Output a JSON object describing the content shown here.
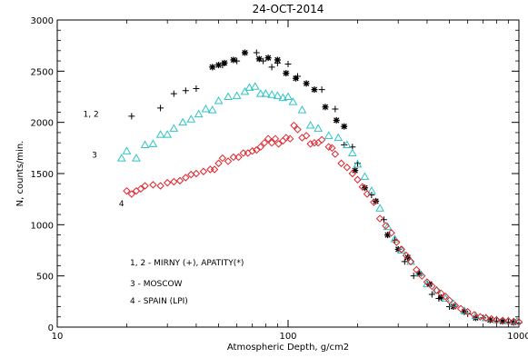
{
  "chart_data": {
    "type": "scatter",
    "title": "24-OCT-2014",
    "xlabel": "Atmospheric Depth, g/cm2",
    "ylabel": "N, counts/min.",
    "xscale": "log",
    "xlim": [
      10,
      1000
    ],
    "ylim": [
      0,
      3000
    ],
    "x_ticks": [
      10,
      100,
      1000
    ],
    "x_tick_labels": [
      "10",
      "100",
      "1000"
    ],
    "y_ticks": [
      0,
      500,
      1000,
      1500,
      2000,
      2500,
      3000
    ],
    "y_tick_labels": [
      "0",
      "500",
      "1000",
      "1500",
      "2000",
      "2500",
      "3000"
    ],
    "grid": false,
    "legend_position": "lower-left",
    "legend_entries": [
      "1, 2 - MIRNY (+), APATITY(*)",
      "3 - MOSCOW",
      "4 - SPAIN (LPI)"
    ],
    "curve_labels": [
      {
        "text": "1, 2",
        "x": 14,
        "y": 2080
      },
      {
        "text": "3",
        "x": 14.5,
        "y": 1680
      },
      {
        "text": "4",
        "x": 19,
        "y": 1205
      }
    ],
    "series": [
      {
        "name": "MIRNY (+)",
        "marker": "plus",
        "color": "#000000",
        "points": [
          [
            21,
            2060
          ],
          [
            28,
            2140
          ],
          [
            32,
            2280
          ],
          [
            36,
            2310
          ],
          [
            40,
            2330
          ],
          [
            52,
            2560
          ],
          [
            60,
            2600
          ],
          [
            73,
            2680
          ],
          [
            78,
            2600
          ],
          [
            85,
            2540
          ],
          [
            90,
            2580
          ],
          [
            100,
            2570
          ],
          [
            110,
            2450
          ],
          [
            140,
            2320
          ],
          [
            160,
            2130
          ],
          [
            175,
            1780
          ],
          [
            190,
            1760
          ],
          [
            200,
            1600
          ],
          [
            230,
            1290
          ],
          [
            260,
            1050
          ],
          [
            290,
            850
          ],
          [
            320,
            640
          ],
          [
            350,
            500
          ],
          [
            420,
            320
          ],
          [
            450,
            280
          ],
          [
            500,
            200
          ],
          [
            600,
            130
          ],
          [
            700,
            90
          ],
          [
            800,
            60
          ],
          [
            900,
            50
          ],
          [
            1000,
            40
          ]
        ]
      },
      {
        "name": "APATITY(*)",
        "marker": "star",
        "color": "#000000",
        "points": [
          [
            47,
            2540
          ],
          [
            50,
            2560
          ],
          [
            53,
            2580
          ],
          [
            58,
            2610
          ],
          [
            65,
            2680
          ],
          [
            75,
            2620
          ],
          [
            82,
            2630
          ],
          [
            90,
            2610
          ],
          [
            98,
            2480
          ],
          [
            108,
            2430
          ],
          [
            120,
            2380
          ],
          [
            130,
            2320
          ],
          [
            145,
            2150
          ],
          [
            162,
            2020
          ],
          [
            175,
            1960
          ],
          [
            195,
            1530
          ],
          [
            215,
            1360
          ],
          [
            240,
            1230
          ],
          [
            270,
            900
          ],
          [
            300,
            760
          ],
          [
            330,
            680
          ],
          [
            370,
            520
          ],
          [
            410,
            420
          ],
          [
            460,
            290
          ],
          [
            520,
            200
          ],
          [
            580,
            150
          ],
          [
            650,
            90
          ],
          [
            750,
            70
          ],
          [
            850,
            55
          ],
          [
            950,
            45
          ]
        ]
      },
      {
        "name": "MOSCOW",
        "marker": "triangle",
        "color": "#2ec4c4",
        "points": [
          [
            19,
            1650
          ],
          [
            20,
            1720
          ],
          [
            22,
            1650
          ],
          [
            24,
            1780
          ],
          [
            26,
            1790
          ],
          [
            28,
            1880
          ],
          [
            30,
            1880
          ],
          [
            32,
            1940
          ],
          [
            35,
            2000
          ],
          [
            38,
            2030
          ],
          [
            41,
            2080
          ],
          [
            44,
            2130
          ],
          [
            47,
            2120
          ],
          [
            50,
            2210
          ],
          [
            55,
            2250
          ],
          [
            60,
            2260
          ],
          [
            65,
            2300
          ],
          [
            68,
            2340
          ],
          [
            72,
            2350
          ],
          [
            76,
            2280
          ],
          [
            80,
            2280
          ],
          [
            85,
            2270
          ],
          [
            90,
            2260
          ],
          [
            95,
            2240
          ],
          [
            100,
            2250
          ],
          [
            105,
            2200
          ],
          [
            115,
            2120
          ],
          [
            125,
            1970
          ],
          [
            135,
            1940
          ],
          [
            150,
            1870
          ],
          [
            165,
            1850
          ],
          [
            180,
            1780
          ],
          [
            190,
            1700
          ],
          [
            200,
            1590
          ],
          [
            215,
            1470
          ],
          [
            230,
            1330
          ],
          [
            250,
            1160
          ],
          [
            270,
            980
          ],
          [
            290,
            860
          ],
          [
            310,
            750
          ],
          [
            340,
            640
          ],
          [
            370,
            530
          ],
          [
            400,
            420
          ],
          [
            440,
            360
          ],
          [
            480,
            280
          ],
          [
            520,
            230
          ],
          [
            580,
            160
          ],
          [
            650,
            110
          ],
          [
            720,
            90
          ],
          [
            800,
            70
          ],
          [
            900,
            60
          ],
          [
            980,
            55
          ]
        ]
      },
      {
        "name": "SPAIN (LPI)",
        "marker": "diamond",
        "color": "#e0242c",
        "points": [
          [
            20,
            1330
          ],
          [
            21,
            1300
          ],
          [
            22,
            1330
          ],
          [
            23,
            1350
          ],
          [
            24,
            1380
          ],
          [
            26,
            1390
          ],
          [
            28,
            1380
          ],
          [
            30,
            1410
          ],
          [
            32,
            1420
          ],
          [
            34,
            1430
          ],
          [
            36,
            1460
          ],
          [
            38,
            1490
          ],
          [
            40,
            1500
          ],
          [
            43,
            1520
          ],
          [
            46,
            1540
          ],
          [
            48,
            1540
          ],
          [
            50,
            1600
          ],
          [
            52,
            1650
          ],
          [
            55,
            1620
          ],
          [
            58,
            1660
          ],
          [
            61,
            1660
          ],
          [
            64,
            1700
          ],
          [
            67,
            1700
          ],
          [
            70,
            1720
          ],
          [
            73,
            1730
          ],
          [
            76,
            1760
          ],
          [
            79,
            1800
          ],
          [
            82,
            1840
          ],
          [
            85,
            1800
          ],
          [
            88,
            1840
          ],
          [
            91,
            1790
          ],
          [
            95,
            1820
          ],
          [
            98,
            1850
          ],
          [
            102,
            1840
          ],
          [
            106,
            1970
          ],
          [
            110,
            1930
          ],
          [
            115,
            1850
          ],
          [
            120,
            1870
          ],
          [
            125,
            1790
          ],
          [
            130,
            1800
          ],
          [
            135,
            1800
          ],
          [
            140,
            1830
          ],
          [
            150,
            1760
          ],
          [
            155,
            1750
          ],
          [
            160,
            1690
          ],
          [
            170,
            1600
          ],
          [
            180,
            1560
          ],
          [
            190,
            1500
          ],
          [
            200,
            1440
          ],
          [
            210,
            1370
          ],
          [
            220,
            1300
          ],
          [
            235,
            1220
          ],
          [
            250,
            1060
          ],
          [
            265,
            990
          ],
          [
            280,
            920
          ],
          [
            295,
            830
          ],
          [
            310,
            760
          ],
          [
            325,
            700
          ],
          [
            340,
            640
          ],
          [
            360,
            560
          ],
          [
            380,
            500
          ],
          [
            400,
            440
          ],
          [
            420,
            400
          ],
          [
            440,
            360
          ],
          [
            460,
            330
          ],
          [
            480,
            300
          ],
          [
            500,
            260
          ],
          [
            530,
            210
          ],
          [
            560,
            180
          ],
          [
            600,
            150
          ],
          [
            640,
            120
          ],
          [
            680,
            100
          ],
          [
            720,
            90
          ],
          [
            760,
            80
          ],
          [
            800,
            70
          ],
          [
            850,
            65
          ],
          [
            900,
            60
          ],
          [
            950,
            55
          ],
          [
            1000,
            50
          ]
        ]
      }
    ]
  }
}
